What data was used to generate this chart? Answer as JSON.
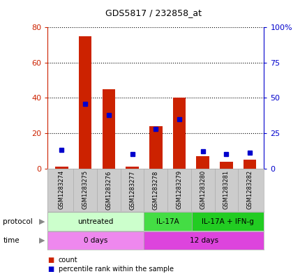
{
  "title": "GDS5817 / 232858_at",
  "samples": [
    "GSM1283274",
    "GSM1283275",
    "GSM1283276",
    "GSM1283277",
    "GSM1283278",
    "GSM1283279",
    "GSM1283280",
    "GSM1283281",
    "GSM1283282"
  ],
  "counts": [
    1,
    75,
    45,
    1,
    24,
    40,
    7,
    4,
    5
  ],
  "percentiles": [
    13,
    46,
    38,
    10,
    28,
    35,
    12,
    10,
    11
  ],
  "left_ylim": [
    0,
    80
  ],
  "right_ylim": [
    0,
    100
  ],
  "left_yticks": [
    0,
    20,
    40,
    60,
    80
  ],
  "right_yticks": [
    0,
    25,
    50,
    75,
    100
  ],
  "right_yticklabels": [
    "0",
    "25",
    "50",
    "75",
    "100%"
  ],
  "bar_color": "#cc2200",
  "dot_color": "#0000cc",
  "protocol_groups": [
    {
      "label": "untreated",
      "start": 0,
      "end": 4,
      "color": "#ccffcc"
    },
    {
      "label": "IL-17A",
      "start": 4,
      "end": 6,
      "color": "#44dd44"
    },
    {
      "label": "IL-17A + IFN-g",
      "start": 6,
      "end": 9,
      "color": "#22cc22"
    }
  ],
  "time_groups": [
    {
      "label": "0 days",
      "start": 0,
      "end": 4,
      "color": "#ee88ee"
    },
    {
      "label": "12 days",
      "start": 4,
      "end": 9,
      "color": "#dd44dd"
    }
  ],
  "background_color": "#ffffff",
  "plot_bg_color": "#ffffff",
  "sample_box_color": "#cccccc"
}
